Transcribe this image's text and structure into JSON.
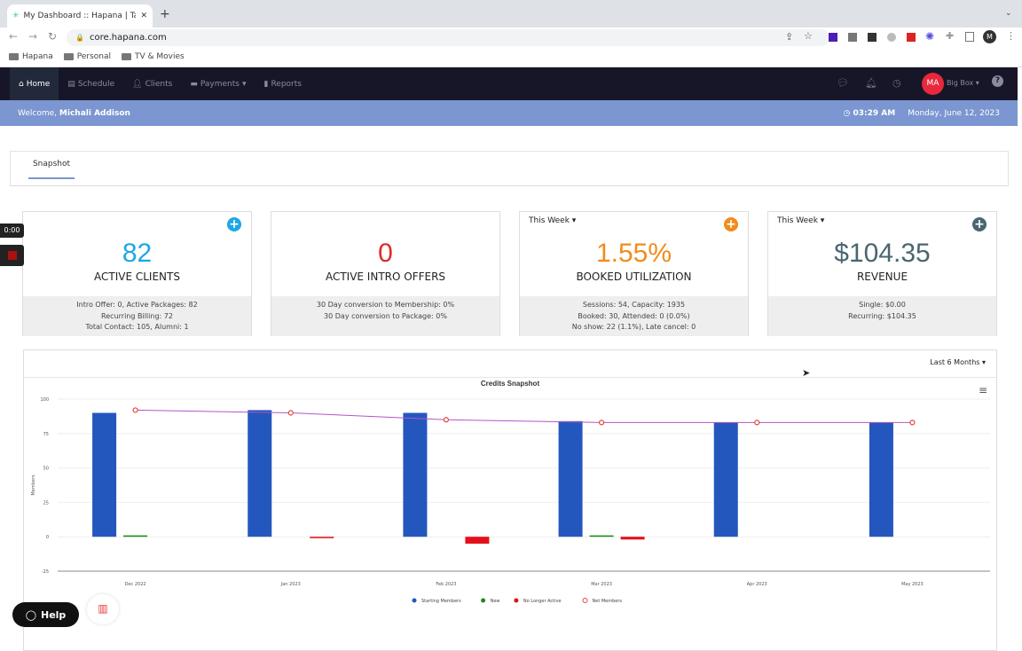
{
  "browser": {
    "tab_title": "My Dashboard :: Hapana | Take",
    "url": "core.hapana.com",
    "bookmarks": [
      "Hapana",
      "Personal",
      "TV & Movies"
    ],
    "profile": "M"
  },
  "nav": {
    "items": [
      "Home",
      "Schedule",
      "Clients",
      "Payments",
      "Reports"
    ],
    "avatar": "MA",
    "account": "Big Box",
    "avatar_color": "#e8283c"
  },
  "welcome": {
    "prefix": "Welcome,",
    "name": "Michali Addison",
    "time": "03:29 AM",
    "date": "Monday, June 12, 2023"
  },
  "tabs": [
    "Snapshot"
  ],
  "cards": [
    {
      "value": "82",
      "label": "ACTIVE CLIENTS",
      "details": [
        "Intro Offer: 0, Active Packages: 82",
        "Recurring Billing: 72",
        "Total Contact: 105, Alumni: 1"
      ],
      "color": "#1ea7e4"
    },
    {
      "value": "0",
      "label": "ACTIVE INTRO OFFERS",
      "details": [
        "30 Day conversion to Membership: 0%",
        "30 Day conversion to Package: 0%"
      ],
      "color": "#e02a2a"
    },
    {
      "period": "This Week",
      "value": "1.55%",
      "label": "BOOKED UTILIZATION",
      "details": [
        "Sessions: 54, Capacity: 1935",
        "Booked: 30, Attended: 0 (0.0%)",
        "No show: 22 (1.1%), Late cancel: 0"
      ],
      "color": "#f08c1c"
    },
    {
      "period": "This Week",
      "value": "$104.35",
      "label": "REVENUE",
      "details": [
        "Single: $0.00",
        "Recurring: $104.35"
      ],
      "color": "#4a6670"
    }
  ],
  "chart_filter": "Last 6 Months",
  "chart_data": {
    "type": "bar",
    "title": "Credits Snapshot",
    "ylabel": "Members",
    "ylim": [
      -25,
      100
    ],
    "yticks": [
      "100",
      "75",
      "50",
      "25",
      "0",
      "-25"
    ],
    "categories": [
      "Dec 2022",
      "Jan 2023",
      "Feb 2023",
      "Mar 2023",
      "Apr 2023",
      "May 2023"
    ],
    "series": [
      {
        "name": "Starting Members",
        "type": "bar",
        "color": "#2457be",
        "values": [
          90,
          92,
          90,
          84,
          83,
          83
        ]
      },
      {
        "name": "New",
        "type": "bar",
        "color": "#1a8a1a",
        "values": [
          1,
          0,
          0,
          1,
          0,
          0
        ]
      },
      {
        "name": "No Longer Active",
        "type": "bar",
        "color": "#e3101a",
        "values": [
          0,
          -1,
          -5,
          -2,
          0,
          0
        ]
      },
      {
        "name": "Net Members",
        "type": "line",
        "color": "#b455c8",
        "marker_color": "#e0483a",
        "values": [
          92,
          90,
          85,
          83,
          83,
          83
        ]
      }
    ],
    "legend": "bottom",
    "grid": true
  },
  "overlay": {
    "timer": "0:00",
    "help": "Help"
  }
}
